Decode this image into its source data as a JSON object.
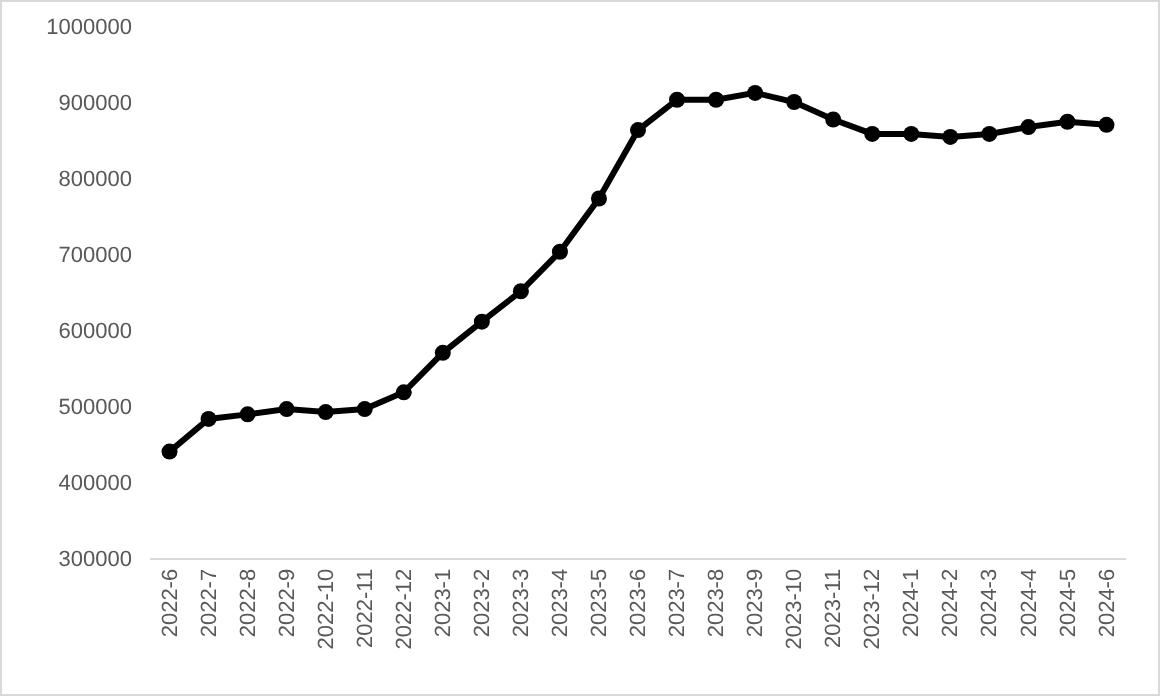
{
  "chart_data": {
    "type": "line",
    "categories": [
      "2022-6",
      "2022-7",
      "2022-8",
      "2022-9",
      "2022-10",
      "2022-11",
      "2022-12",
      "2023-1",
      "2023-2",
      "2023-3",
      "2023-4",
      "2023-5",
      "2023-6",
      "2023-7",
      "2023-8",
      "2023-9",
      "2023-10",
      "2023-11",
      "2023-12",
      "2024-1",
      "2024-2",
      "2024-3",
      "2024-4",
      "2024-5",
      "2024-6"
    ],
    "series": [
      {
        "color": "#000000",
        "values": [
          440000,
          483000,
          489000,
          496000,
          492000,
          496000,
          518000,
          570000,
          611000,
          651000,
          703000,
          773000,
          863000,
          903000,
          903000,
          912000,
          900000,
          877000,
          858000,
          858000,
          854000,
          858000,
          867000,
          874000,
          870000
        ]
      }
    ],
    "ylim": [
      300000,
      1000000
    ],
    "yticks": [
      300000,
      400000,
      500000,
      600000,
      700000,
      800000,
      900000,
      1000000
    ],
    "grid": false,
    "marker": "circle",
    "line_style": "solid"
  }
}
